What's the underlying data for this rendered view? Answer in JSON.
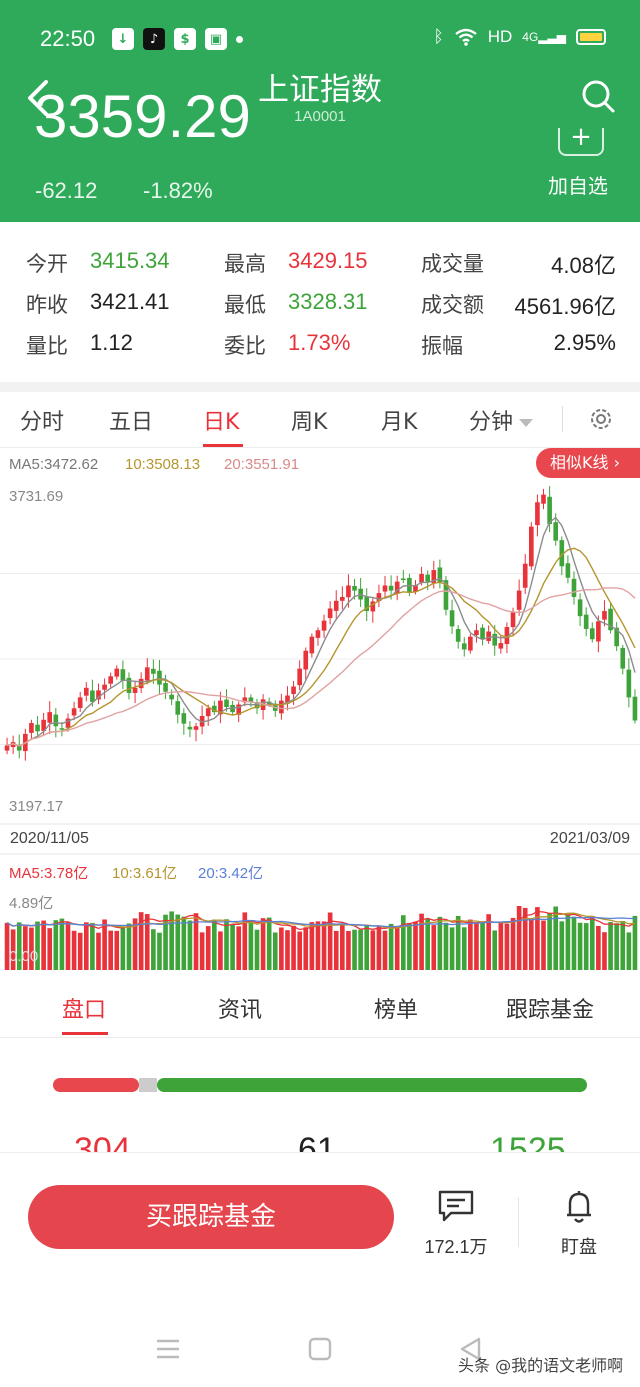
{
  "status_bar": {
    "time": "22:50",
    "network": "HD",
    "signal": "4G"
  },
  "header": {
    "title": "上证指数",
    "code": "1A0001",
    "price": "3359.29",
    "change": "-62.12",
    "change_pct": "-1.82%",
    "add_watch_label": "加自选"
  },
  "stats": [
    {
      "label": "今开",
      "value": "3415.34",
      "trend": "down"
    },
    {
      "label": "最高",
      "value": "3429.15",
      "trend": "up"
    },
    {
      "label": "成交量",
      "value": "4.08亿",
      "trend": "neutral"
    },
    {
      "label": "昨收",
      "value": "3421.41",
      "trend": "neutral"
    },
    {
      "label": "最低",
      "value": "3328.31",
      "trend": "down"
    },
    {
      "label": "成交额",
      "value": "4561.96亿",
      "trend": "neutral"
    },
    {
      "label": "量比",
      "value": "1.12",
      "trend": "neutral"
    },
    {
      "label": "委比",
      "value": "1.73%",
      "trend": "up"
    },
    {
      "label": "振幅",
      "value": "2.95%",
      "trend": "neutral"
    }
  ],
  "kline_tabs": [
    "分时",
    "五日",
    "日K",
    "周K",
    "月K",
    "分钟"
  ],
  "active_kline_tab": "日K",
  "chart": {
    "ma_legend": {
      "ma5": "MA5:3472.62",
      "ma10": "10:3508.13",
      "ma20": "20:3551.91"
    },
    "similar_button": "相似K线 ›",
    "price_high_label": "3731.69",
    "price_low_label": "3197.17",
    "date_start": "2020/11/05",
    "date_end": "2021/03/09",
    "vol_legend": {
      "ma5": "MA5:3.78亿",
      "ma10": "10:3.61亿",
      "ma20": "20:3.42亿"
    },
    "vol_max_label": "4.89亿",
    "vol_min_label": "0.00",
    "colors": {
      "up": "#e8333b",
      "down": "#3ea43a",
      "ma5": "#8c8c8c",
      "ma10": "#b5952e",
      "ma20": "#e0a3a3",
      "vol_ma20": "#5b7fd6"
    }
  },
  "chart_data": {
    "type": "candlestick",
    "x_start": "2020/11/05",
    "x_end": "2021/03/09",
    "ylim": [
      3197.17,
      3731.69
    ],
    "closes": [
      3320,
      3325,
      3312,
      3338,
      3355,
      3342,
      3360,
      3372,
      3350,
      3346,
      3362,
      3378,
      3395,
      3410,
      3388,
      3406,
      3415,
      3428,
      3440,
      3421,
      3402,
      3410,
      3424,
      3442,
      3432,
      3415,
      3404,
      3392,
      3368,
      3354,
      3345,
      3350,
      3366,
      3378,
      3372,
      3390,
      3380,
      3372,
      3384,
      3395,
      3388,
      3378,
      3392,
      3384,
      3374,
      3390,
      3398,
      3412,
      3440,
      3468,
      3490,
      3500,
      3515,
      3534,
      3546,
      3552,
      3570,
      3562,
      3548,
      3530,
      3545,
      3558,
      3570,
      3562,
      3576,
      3580,
      3560,
      3570,
      3588,
      3576,
      3594,
      3575,
      3532,
      3506,
      3482,
      3470,
      3490,
      3500,
      3486,
      3498,
      3476,
      3480,
      3505,
      3528,
      3562,
      3604,
      3662,
      3700,
      3712,
      3666,
      3640,
      3600,
      3582,
      3552,
      3522,
      3502,
      3486,
      3514,
      3530,
      3500,
      3475,
      3440,
      3395,
      3359
    ],
    "volume_max": 4.89
  },
  "bottom_tabs": [
    "盘口",
    "资讯",
    "榜单",
    "跟踪基金"
  ],
  "active_bottom_tab": "盘口",
  "breadth": {
    "up": "304",
    "flat": "61",
    "down": "1525"
  },
  "actions": {
    "buy_label": "买跟踪基金",
    "comment_count": "172.1万",
    "watch_label": "盯盘"
  },
  "watermark": "头条 @我的语文老师啊"
}
